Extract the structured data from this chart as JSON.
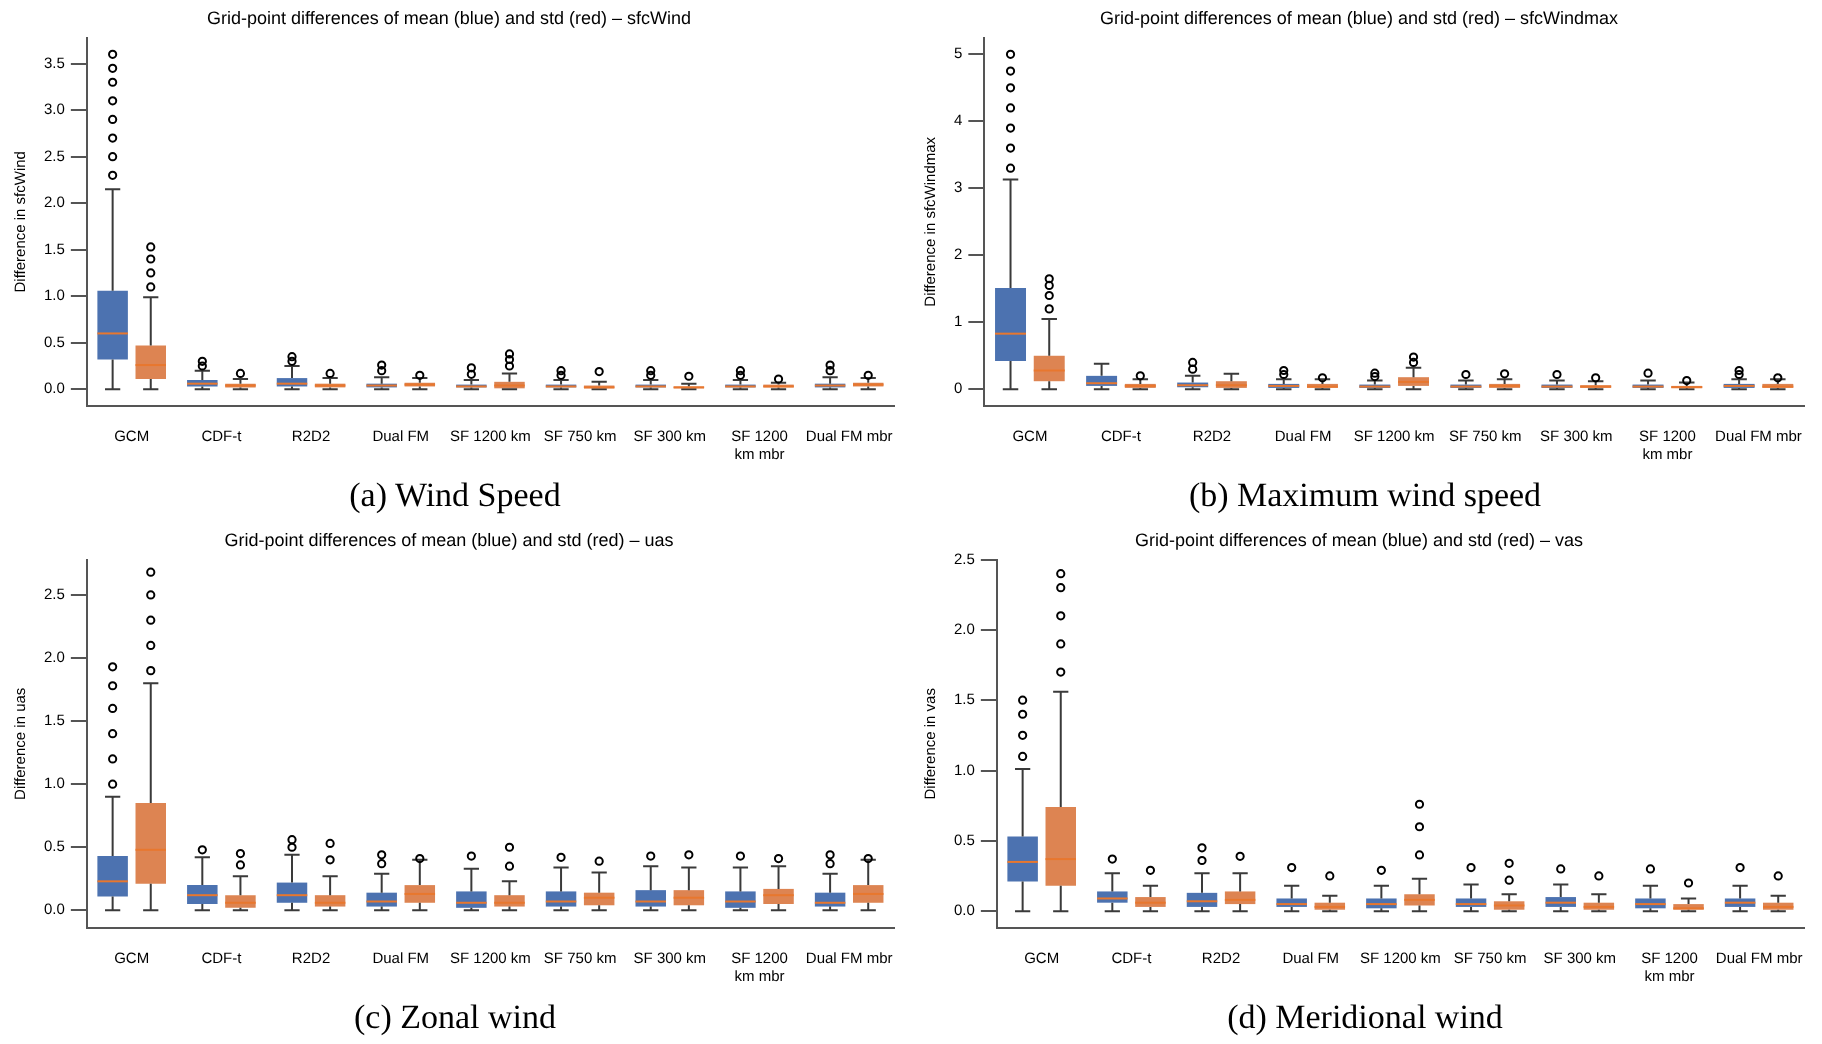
{
  "chart_data": [
    {
      "type": "box",
      "title": "Grid-point differences of mean (blue) and std (red) – sfcWind",
      "ylabel": "Difference in sfcWind",
      "annotations": [
        "(a) Wind Speed"
      ],
      "categories": [
        "GCM",
        "CDF-t",
        "R2D2",
        "Dual FM",
        "SF 1200 km",
        "SF 750 km",
        "SF 300 km",
        "SF 1200 km mbr",
        "Dual FM mbr"
      ],
      "ylim": [
        -0.18,
        3.78
      ],
      "yticks": [
        {
          "value": 0,
          "label": "0.0"
        },
        0.5,
        {
          "value": 1,
          "label": "1.0"
        },
        1.5,
        {
          "value": 2,
          "label": "2.0"
        },
        2.5,
        {
          "value": 3,
          "label": "3.0"
        },
        3.5
      ],
      "grid": false,
      "legend": false,
      "series": [
        {
          "color": "#4c72b0",
          "boxes": [
            {
              "low": 0,
              "q1": 0.32,
              "median": 0.6,
              "q3": 1.06,
              "high": 2.15,
              "outliers": [
                2.3,
                2.5,
                2.7,
                2.9,
                3.1,
                3.3,
                3.45,
                3.6
              ]
            },
            {
              "low": 0,
              "q1": 0.03,
              "median": 0.06,
              "q3": 0.1,
              "high": 0.2,
              "outliers": [
                0.25,
                0.3
              ]
            },
            {
              "low": 0,
              "q1": 0.03,
              "median": 0.06,
              "q3": 0.12,
              "high": 0.25,
              "outliers": [
                0.3,
                0.35
              ]
            },
            {
              "low": 0,
              "q1": 0.02,
              "median": 0.04,
              "q3": 0.06,
              "high": 0.13,
              "outliers": [
                0.2,
                0.26
              ]
            },
            {
              "low": 0,
              "q1": 0.02,
              "median": 0.03,
              "q3": 0.05,
              "high": 0.1,
              "outliers": [
                0.16,
                0.23
              ]
            },
            {
              "low": 0,
              "q1": 0.02,
              "median": 0.03,
              "q3": 0.05,
              "high": 0.1,
              "outliers": [
                0.15,
                0.2
              ]
            },
            {
              "low": 0,
              "q1": 0.02,
              "median": 0.03,
              "q3": 0.05,
              "high": 0.1,
              "outliers": [
                0.15,
                0.2
              ]
            },
            {
              "low": 0,
              "q1": 0.02,
              "median": 0.03,
              "q3": 0.05,
              "high": 0.1,
              "outliers": [
                0.15,
                0.2
              ]
            },
            {
              "low": 0,
              "q1": 0.02,
              "median": 0.04,
              "q3": 0.06,
              "high": 0.13,
              "outliers": [
                0.2,
                0.26
              ]
            }
          ]
        },
        {
          "color": "#dd8452",
          "boxes": [
            {
              "low": 0,
              "q1": 0.11,
              "median": 0.26,
              "q3": 0.47,
              "high": 0.99,
              "outliers": [
                1.1,
                1.25,
                1.4,
                1.53
              ]
            },
            {
              "low": 0,
              "q1": 0.02,
              "median": 0.04,
              "q3": 0.06,
              "high": 0.11,
              "outliers": [
                0.17
              ]
            },
            {
              "low": 0,
              "q1": 0.02,
              "median": 0.04,
              "q3": 0.06,
              "high": 0.12,
              "outliers": [
                0.17
              ]
            },
            {
              "low": 0,
              "q1": 0.03,
              "median": 0.05,
              "q3": 0.07,
              "high": 0.12,
              "outliers": [
                0.15
              ]
            },
            {
              "low": 0,
              "q1": 0.01,
              "median": 0.04,
              "q3": 0.08,
              "high": 0.17,
              "outliers": [
                0.25,
                0.32,
                0.38
              ]
            },
            {
              "low": 0,
              "q1": 0.01,
              "median": 0.02,
              "q3": 0.04,
              "high": 0.08,
              "outliers": [
                0.19
              ]
            },
            {
              "low": 0,
              "q1": 0.01,
              "median": 0.02,
              "q3": 0.03,
              "high": 0.06,
              "outliers": [
                0.14
              ]
            },
            {
              "low": 0,
              "q1": 0.02,
              "median": 0.03,
              "q3": 0.05,
              "high": 0.07,
              "outliers": [
                0.11
              ]
            },
            {
              "low": 0,
              "q1": 0.03,
              "median": 0.05,
              "q3": 0.07,
              "high": 0.12,
              "outliers": [
                0.15
              ]
            }
          ]
        }
      ]
    },
    {
      "type": "box",
      "title": "Grid-point differences of mean (blue) and std (red) – sfcWindmax",
      "ylabel": "Difference in sfcWindmax",
      "annotations": [
        "(b) Maximum wind speed"
      ],
      "categories": [
        "GCM",
        "CDF-t",
        "R2D2",
        "Dual FM",
        "SF 1200 km",
        "SF 750 km",
        "SF 300 km",
        "SF 1200 km mbr",
        "Dual FM mbr"
      ],
      "ylim": [
        -0.25,
        5.25
      ],
      "yticks": [
        0,
        1,
        2,
        3,
        4,
        5
      ],
      "grid": false,
      "legend": false,
      "series": [
        {
          "color": "#4c72b0",
          "boxes": [
            {
              "low": 0,
              "q1": 0.42,
              "median": 0.83,
              "q3": 1.51,
              "high": 3.13,
              "outliers": [
                3.3,
                3.6,
                3.9,
                4.2,
                4.5,
                4.75,
                5.0
              ]
            },
            {
              "low": 0,
              "q1": 0.05,
              "median": 0.09,
              "q3": 0.2,
              "high": 0.38
            },
            {
              "low": 0,
              "q1": 0.03,
              "median": 0.06,
              "q3": 0.1,
              "high": 0.2,
              "outliers": [
                0.3,
                0.4
              ]
            },
            {
              "low": 0,
              "q1": 0.02,
              "median": 0.05,
              "q3": 0.08,
              "high": 0.15,
              "outliers": [
                0.22,
                0.28
              ]
            },
            {
              "low": 0,
              "q1": 0.02,
              "median": 0.04,
              "q3": 0.07,
              "high": 0.13,
              "outliers": [
                0.19,
                0.24
              ]
            },
            {
              "low": 0,
              "q1": 0.02,
              "median": 0.04,
              "q3": 0.07,
              "high": 0.13,
              "outliers": [
                0.22
              ]
            },
            {
              "low": 0,
              "q1": 0.02,
              "median": 0.04,
              "q3": 0.07,
              "high": 0.13,
              "outliers": [
                0.22
              ]
            },
            {
              "low": 0,
              "q1": 0.02,
              "median": 0.04,
              "q3": 0.07,
              "high": 0.13,
              "outliers": [
                0.24
              ]
            },
            {
              "low": 0,
              "q1": 0.02,
              "median": 0.05,
              "q3": 0.08,
              "high": 0.15,
              "outliers": [
                0.22,
                0.28
              ]
            }
          ]
        },
        {
          "color": "#dd8452",
          "boxes": [
            {
              "low": 0,
              "q1": 0.12,
              "median": 0.28,
              "q3": 0.5,
              "high": 1.05,
              "outliers": [
                1.2,
                1.4,
                1.55,
                1.65
              ]
            },
            {
              "low": 0,
              "q1": 0.02,
              "median": 0.05,
              "q3": 0.08,
              "high": 0.15,
              "outliers": [
                0.2
              ]
            },
            {
              "low": 0,
              "q1": 0.02,
              "median": 0.06,
              "q3": 0.12,
              "high": 0.23
            },
            {
              "low": 0,
              "q1": 0.02,
              "median": 0.04,
              "q3": 0.08,
              "high": 0.15,
              "outliers": [
                0.17
              ]
            },
            {
              "low": 0,
              "q1": 0.05,
              "median": 0.11,
              "q3": 0.18,
              "high": 0.32,
              "outliers": [
                0.4,
                0.48
              ]
            },
            {
              "low": 0,
              "q1": 0.02,
              "median": 0.05,
              "q3": 0.08,
              "high": 0.15,
              "outliers": [
                0.23
              ]
            },
            {
              "low": 0,
              "q1": 0.02,
              "median": 0.04,
              "q3": 0.06,
              "high": 0.12,
              "outliers": [
                0.17
              ]
            },
            {
              "low": 0,
              "q1": 0.02,
              "median": 0.03,
              "q3": 0.05,
              "high": 0.1,
              "outliers": [
                0.13
              ]
            },
            {
              "low": 0,
              "q1": 0.02,
              "median": 0.04,
              "q3": 0.08,
              "high": 0.15,
              "outliers": [
                0.17
              ]
            }
          ]
        }
      ]
    },
    {
      "type": "box",
      "title": "Grid-point differences of mean (blue) and std (red) – uas",
      "ylabel": "Difference in uas",
      "annotations": [
        "(c) Zonal wind"
      ],
      "categories": [
        "GCM",
        "CDF-t",
        "R2D2",
        "Dual FM",
        "SF 1200 km",
        "SF 750 km",
        "SF 300 km",
        "SF 1200 km mbr",
        "Dual FM mbr"
      ],
      "ylim": [
        -0.14,
        2.78
      ],
      "yticks": [
        {
          "value": 0,
          "label": "0.0"
        },
        0.5,
        {
          "value": 1,
          "label": "1.0"
        },
        1.5,
        {
          "value": 2,
          "label": "2.0"
        },
        2.5
      ],
      "grid": false,
      "legend": false,
      "series": [
        {
          "color": "#4c72b0",
          "boxes": [
            {
              "low": 0,
              "q1": 0.11,
              "median": 0.23,
              "q3": 0.43,
              "high": 0.9,
              "outliers": [
                1.0,
                1.2,
                1.4,
                1.6,
                1.78,
                1.93
              ]
            },
            {
              "low": 0,
              "q1": 0.05,
              "median": 0.12,
              "q3": 0.2,
              "high": 0.42,
              "outliers": [
                0.48
              ]
            },
            {
              "low": 0,
              "q1": 0.06,
              "median": 0.12,
              "q3": 0.22,
              "high": 0.44,
              "outliers": [
                0.5,
                0.56
              ]
            },
            {
              "low": 0,
              "q1": 0.03,
              "median": 0.07,
              "q3": 0.14,
              "high": 0.29,
              "outliers": [
                0.37,
                0.44
              ]
            },
            {
              "low": 0,
              "q1": 0.02,
              "median": 0.06,
              "q3": 0.15,
              "high": 0.33,
              "outliers": [
                0.43
              ]
            },
            {
              "low": 0,
              "q1": 0.03,
              "median": 0.07,
              "q3": 0.15,
              "high": 0.34,
              "outliers": [
                0.42
              ]
            },
            {
              "low": 0,
              "q1": 0.03,
              "median": 0.07,
              "q3": 0.16,
              "high": 0.35,
              "outliers": [
                0.43
              ]
            },
            {
              "low": 0,
              "q1": 0.02,
              "median": 0.07,
              "q3": 0.15,
              "high": 0.34,
              "outliers": [
                0.43
              ]
            },
            {
              "low": 0,
              "q1": 0.03,
              "median": 0.06,
              "q3": 0.14,
              "high": 0.29,
              "outliers": [
                0.37,
                0.44
              ]
            }
          ]
        },
        {
          "color": "#dd8452",
          "boxes": [
            {
              "low": 0,
              "q1": 0.21,
              "median": 0.48,
              "q3": 0.85,
              "high": 1.8,
              "outliers": [
                1.9,
                2.1,
                2.3,
                2.5,
                2.68
              ]
            },
            {
              "low": 0,
              "q1": 0.02,
              "median": 0.06,
              "q3": 0.12,
              "high": 0.27,
              "outliers": [
                0.36,
                0.45
              ]
            },
            {
              "low": 0,
              "q1": 0.03,
              "median": 0.06,
              "q3": 0.12,
              "high": 0.27,
              "outliers": [
                0.4,
                0.53
              ]
            },
            {
              "low": 0,
              "q1": 0.06,
              "median": 0.13,
              "q3": 0.2,
              "high": 0.4,
              "outliers": [
                0.41
              ]
            },
            {
              "low": 0,
              "q1": 0.03,
              "median": 0.06,
              "q3": 0.12,
              "high": 0.23,
              "outliers": [
                0.35,
                0.5
              ]
            },
            {
              "low": 0,
              "q1": 0.04,
              "median": 0.1,
              "q3": 0.14,
              "high": 0.3,
              "outliers": [
                0.39
              ]
            },
            {
              "low": 0,
              "q1": 0.04,
              "median": 0.1,
              "q3": 0.16,
              "high": 0.34,
              "outliers": [
                0.44
              ]
            },
            {
              "low": 0,
              "q1": 0.05,
              "median": 0.12,
              "q3": 0.17,
              "high": 0.35,
              "outliers": [
                0.41
              ]
            },
            {
              "low": 0,
              "q1": 0.06,
              "median": 0.13,
              "q3": 0.2,
              "high": 0.4,
              "outliers": [
                0.41
              ]
            }
          ]
        }
      ]
    },
    {
      "type": "box",
      "title": "Grid-point differences of mean (blue) and std (red) – vas",
      "ylabel": "Difference in vas",
      "annotations": [
        "(d) Meridional wind"
      ],
      "categories": [
        "GCM",
        "CDF-t",
        "R2D2",
        "Dual FM",
        "SF 1200 km",
        "SF 750 km",
        "SF 300 km",
        "SF 1200 km mbr",
        "Dual FM mbr"
      ],
      "ylim": [
        -0.12,
        2.5
      ],
      "yticks": [
        {
          "value": 0,
          "label": "0.0"
        },
        0.5,
        {
          "value": 1,
          "label": "1.0"
        },
        1.5,
        {
          "value": 2,
          "label": "2.0"
        },
        2.5
      ],
      "grid": false,
      "legend": false,
      "series": [
        {
          "color": "#4c72b0",
          "boxes": [
            {
              "low": 0,
              "q1": 0.21,
              "median": 0.35,
              "q3": 0.53,
              "high": 1.01,
              "outliers": [
                1.1,
                1.25,
                1.4,
                1.5
              ]
            },
            {
              "low": 0,
              "q1": 0.06,
              "median": 0.09,
              "q3": 0.14,
              "high": 0.27,
              "outliers": [
                0.37
              ]
            },
            {
              "low": 0,
              "q1": 0.03,
              "median": 0.07,
              "q3": 0.13,
              "high": 0.27,
              "outliers": [
                0.36,
                0.45
              ]
            },
            {
              "low": 0,
              "q1": 0.03,
              "median": 0.05,
              "q3": 0.09,
              "high": 0.18,
              "outliers": [
                0.31
              ]
            },
            {
              "low": 0,
              "q1": 0.02,
              "median": 0.05,
              "q3": 0.09,
              "high": 0.18,
              "outliers": [
                0.29
              ]
            },
            {
              "low": 0,
              "q1": 0.03,
              "median": 0.05,
              "q3": 0.09,
              "high": 0.19,
              "outliers": [
                0.31
              ]
            },
            {
              "low": 0,
              "q1": 0.03,
              "median": 0.06,
              "q3": 0.1,
              "high": 0.19,
              "outliers": [
                0.3
              ]
            },
            {
              "low": 0,
              "q1": 0.02,
              "median": 0.05,
              "q3": 0.09,
              "high": 0.18,
              "outliers": [
                0.3
              ]
            },
            {
              "low": 0,
              "q1": 0.03,
              "median": 0.06,
              "q3": 0.09,
              "high": 0.18,
              "outliers": [
                0.31
              ]
            }
          ]
        },
        {
          "color": "#dd8452",
          "boxes": [
            {
              "low": 0,
              "q1": 0.18,
              "median": 0.37,
              "q3": 0.74,
              "high": 1.56,
              "outliers": [
                1.7,
                1.9,
                2.1,
                2.3,
                2.4
              ]
            },
            {
              "low": 0,
              "q1": 0.03,
              "median": 0.06,
              "q3": 0.1,
              "high": 0.18,
              "outliers": [
                0.29
              ]
            },
            {
              "low": 0,
              "q1": 0.05,
              "median": 0.08,
              "q3": 0.14,
              "high": 0.27,
              "outliers": [
                0.39
              ]
            },
            {
              "low": 0,
              "q1": 0.01,
              "median": 0.03,
              "q3": 0.06,
              "high": 0.11,
              "outliers": [
                0.25
              ]
            },
            {
              "low": 0,
              "q1": 0.04,
              "median": 0.08,
              "q3": 0.12,
              "high": 0.23,
              "outliers": [
                0.4,
                0.6,
                0.76
              ]
            },
            {
              "low": 0,
              "q1": 0.01,
              "median": 0.04,
              "q3": 0.07,
              "high": 0.12,
              "outliers": [
                0.22,
                0.34
              ]
            },
            {
              "low": 0,
              "q1": 0.01,
              "median": 0.03,
              "q3": 0.06,
              "high": 0.12,
              "outliers": [
                0.25
              ]
            },
            {
              "low": 0,
              "q1": 0.01,
              "median": 0.02,
              "q3": 0.05,
              "high": 0.09,
              "outliers": [
                0.2
              ]
            },
            {
              "low": 0,
              "q1": 0.01,
              "median": 0.03,
              "q3": 0.06,
              "high": 0.11,
              "outliers": [
                0.25
              ]
            }
          ]
        }
      ]
    }
  ]
}
